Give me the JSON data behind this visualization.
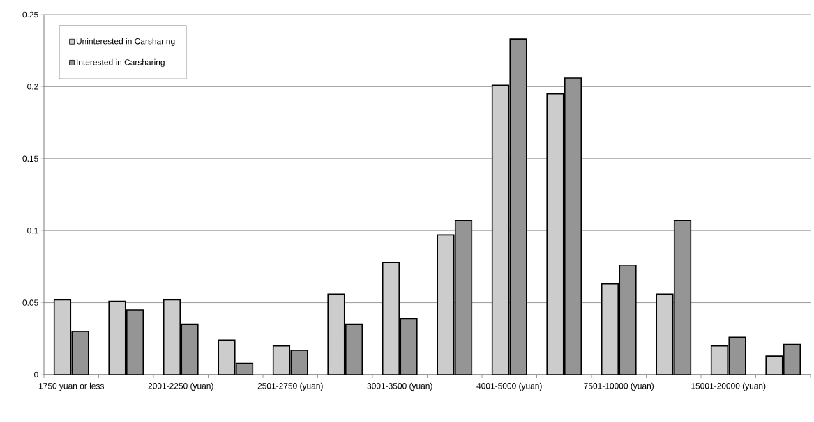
{
  "chart_data": {
    "type": "bar",
    "categories": [
      "1750 yuan or less",
      null,
      "2001-2250 (yuan)",
      null,
      "2501-2750 (yuan)",
      null,
      "3001-3500 (yuan)",
      null,
      "4001-5000 (yuan)",
      null,
      "7501-10000 (yuan)",
      null,
      "15001-20000 (yuan)",
      null
    ],
    "series": [
      {
        "name": "Uninterested in Carsharing",
        "color": "#cccccc",
        "values": [
          0.052,
          0.051,
          0.052,
          0.024,
          0.02,
          0.056,
          0.078,
          0.097,
          0.201,
          0.195,
          0.063,
          0.056,
          0.02,
          0.013
        ]
      },
      {
        "name": "Interested in Carsharing",
        "color": "#959595",
        "values": [
          0.03,
          0.045,
          0.035,
          0.008,
          0.017,
          0.035,
          0.039,
          0.107,
          0.233,
          0.206,
          0.076,
          0.107,
          0.026,
          0.021
        ]
      }
    ],
    "ylim": [
      0,
      0.25
    ],
    "yticks": [
      0,
      0.05,
      0.1,
      0.15,
      0.2,
      0.25
    ],
    "grid": "y",
    "legend": "top left"
  }
}
